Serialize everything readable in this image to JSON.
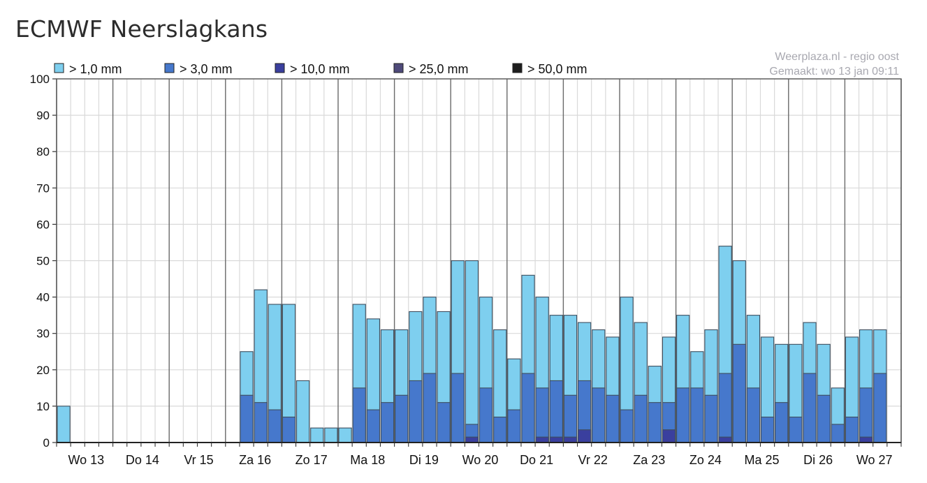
{
  "page": {
    "title": "ECMWF Neerslagkans"
  },
  "chart_data": {
    "type": "bar",
    "stacked": true,
    "title": "ECMWF Neerslagkans",
    "source_line1": "Weerplaza.nl - regio oost",
    "source_line2": "Gemaakt: wo 13 jan 09:11",
    "ylim": [
      0,
      100
    ],
    "yticks": [
      0,
      10,
      20,
      30,
      40,
      50,
      60,
      70,
      80,
      90,
      100
    ],
    "grid": true,
    "legend_position": "top",
    "x_slots": 60,
    "day_labels": [
      "Wo 13",
      "Do 14",
      "Vr 15",
      "Za 16",
      "Zo 17",
      "Ma 18",
      "Di 19",
      "Wo 20",
      "Do 21",
      "Vr 22",
      "Za 23",
      "Zo 24",
      "Ma 25",
      "Di 26",
      "Wo 27"
    ],
    "legend": [
      {
        "label": "> 1,0 mm",
        "color": "#7ecfef"
      },
      {
        "label": "> 3,0 mm",
        "color": "#4678cc"
      },
      {
        "label": "> 10,0 mm",
        "color": "#3a3f9e"
      },
      {
        "label": "> 25,0 mm",
        "color": "#4e4a7a"
      },
      {
        "label": "> 50,0 mm",
        "color": "#1e1e1e"
      }
    ],
    "series": [
      {
        "name": "> 1,0 mm",
        "color": "#7ecfef",
        "values": [
          10,
          0,
          0,
          0,
          0,
          0,
          0,
          0,
          0,
          0,
          0,
          0,
          0,
          0,
          0,
          0,
          0,
          0,
          0,
          0,
          0,
          0,
          0,
          0,
          0,
          0,
          0,
          0,
          0,
          0,
          0,
          0,
          0,
          0,
          0,
          0,
          25,
          42,
          38,
          38,
          17,
          4,
          4,
          4,
          38,
          34,
          31,
          31,
          36,
          40,
          36,
          50,
          50,
          40,
          31,
          23,
          46,
          40,
          35,
          35
        ]
      },
      {
        "name": "> 3,0 mm",
        "color": "#4678cc",
        "values": [
          0,
          0,
          0,
          0,
          0,
          0,
          0,
          0,
          0,
          0,
          0,
          0,
          0,
          0,
          0,
          0,
          0,
          0,
          0,
          0,
          0,
          0,
          0,
          0,
          0,
          0,
          0,
          0,
          0,
          0,
          0,
          0,
          0,
          0,
          0,
          0,
          13,
          11,
          9,
          7,
          0,
          0,
          0,
          0,
          15,
          9,
          11,
          13,
          17,
          19,
          11,
          19,
          5,
          15,
          7,
          9,
          19,
          15,
          17,
          13
        ]
      },
      {
        "name": "> 10,0 mm",
        "color": "#3a3f9e",
        "values": [
          0,
          0,
          0,
          0,
          0,
          0,
          0,
          0,
          0,
          0,
          0,
          0,
          0,
          0,
          0,
          0,
          0,
          0,
          0,
          0,
          0,
          0,
          0,
          0,
          0,
          0,
          0,
          0,
          0,
          0,
          0,
          0,
          0,
          0,
          0,
          0,
          0,
          0,
          0,
          0,
          0,
          0,
          0,
          0,
          0,
          0,
          0,
          0,
          0,
          0,
          0,
          0,
          1.5,
          0,
          0,
          0,
          0,
          1.5,
          1.5,
          1.5
        ]
      },
      {
        "name": "> 25,0 mm",
        "color": "#4e4a7a",
        "values": [
          0,
          0,
          0,
          0,
          0,
          0,
          0,
          0,
          0,
          0,
          0,
          0,
          0,
          0,
          0,
          0,
          0,
          0,
          0,
          0,
          0,
          0,
          0,
          0,
          0,
          0,
          0,
          0,
          0,
          0,
          0,
          0,
          0,
          0,
          0,
          0,
          0,
          0,
          0,
          0,
          0,
          0,
          0,
          0,
          0,
          0,
          0,
          0,
          0,
          0,
          0,
          0,
          0,
          0,
          0,
          0,
          0,
          0,
          0,
          0
        ]
      },
      {
        "name": "> 50,0 mm",
        "color": "#1e1e1e",
        "values": [
          0,
          0,
          0,
          0,
          0,
          0,
          0,
          0,
          0,
          0,
          0,
          0,
          0,
          0,
          0,
          0,
          0,
          0,
          0,
          0,
          0,
          0,
          0,
          0,
          0,
          0,
          0,
          0,
          0,
          0,
          0,
          0,
          0,
          0,
          0,
          0,
          0,
          0,
          0,
          0,
          0,
          0,
          0,
          0,
          0,
          0,
          0,
          0,
          0,
          0,
          0,
          0,
          0,
          0,
          0,
          0,
          0,
          0,
          0,
          0
        ]
      }
    ],
    "bars": [
      {
        "slot": 0,
        "v1": 10,
        "v3": 0,
        "v10": 0
      },
      {
        "slot": 36,
        "v1": 25,
        "v3": 13,
        "v10": 0
      },
      {
        "slot": 37,
        "v1": 42,
        "v3": 11,
        "v10": 0
      },
      {
        "slot": 38,
        "v1": 38,
        "v3": 9,
        "v10": 0
      },
      {
        "slot": 39,
        "v1": 38,
        "v3": 7,
        "v10": 0
      },
      {
        "slot": 40,
        "v1": 17,
        "v3": 0,
        "v10": 0
      },
      {
        "slot": 41,
        "v1": 4,
        "v3": 0,
        "v10": 0
      },
      {
        "slot": 42,
        "v1": 4,
        "v3": 0,
        "v10": 0
      },
      {
        "slot": 43,
        "v1": 4,
        "v3": 0,
        "v10": 0
      },
      {
        "slot": 44,
        "v1": 38,
        "v3": 15,
        "v10": 0
      },
      {
        "slot": 45,
        "v1": 34,
        "v3": 9,
        "v10": 0
      },
      {
        "slot": 46,
        "v1": 31,
        "v3": 11,
        "v10": 0
      },
      {
        "slot": 47,
        "v1": 31,
        "v3": 13,
        "v10": 0
      },
      {
        "slot": 48,
        "v1": 36,
        "v3": 17,
        "v10": 0
      },
      {
        "slot": 49,
        "v1": 40,
        "v3": 19,
        "v10": 0
      },
      {
        "slot": 50,
        "v1": 36,
        "v3": 11,
        "v10": 0
      },
      {
        "slot": 51,
        "v1": 50,
        "v3": 19,
        "v10": 0
      },
      {
        "slot": 52,
        "v1": 50,
        "v3": 5,
        "v10": 1.5
      },
      {
        "slot": 53,
        "v1": 40,
        "v3": 15,
        "v10": 0
      },
      {
        "slot": 54,
        "v1": 31,
        "v3": 7,
        "v10": 0
      },
      {
        "slot": 55,
        "v1": 23,
        "v3": 9,
        "v10": 0
      },
      {
        "slot": 56,
        "v1": 46,
        "v3": 19,
        "v10": 0
      },
      {
        "slot": 57,
        "v1": 40,
        "v3": 15,
        "v10": 1.5
      },
      {
        "slot": 58,
        "v1": 35,
        "v3": 17,
        "v10": 1.5
      },
      {
        "slot": 59,
        "v1": 35,
        "v3": 13,
        "v10": 1.5
      },
      {
        "slot": 60,
        "v1": 33,
        "v3": 17,
        "v10": 3.5
      },
      {
        "slot": 61,
        "v1": 31,
        "v3": 15,
        "v10": 0
      },
      {
        "slot": 62,
        "v1": 29,
        "v3": 13,
        "v10": 0
      },
      {
        "slot": 63,
        "v1": 40,
        "v3": 9,
        "v10": 0
      },
      {
        "slot": 64,
        "v1": 33,
        "v3": 13,
        "v10": 0
      },
      {
        "slot": 65,
        "v1": 21,
        "v3": 11,
        "v10": 0
      },
      {
        "slot": 66,
        "v1": 29,
        "v3": 11,
        "v10": 3.5
      },
      {
        "slot": 67,
        "v1": 35,
        "v3": 15,
        "v10": 0
      },
      {
        "slot": 68,
        "v1": 25,
        "v3": 15,
        "v10": 0
      },
      {
        "slot": 69,
        "v1": 31,
        "v3": 13,
        "v10": 0
      },
      {
        "slot": 70,
        "v1": 54,
        "v3": 19,
        "v10": 1.5
      },
      {
        "slot": 71,
        "v1": 50,
        "v3": 27,
        "v10": 0
      },
      {
        "slot": 72,
        "v1": 35,
        "v3": 15,
        "v10": 0
      },
      {
        "slot": 73,
        "v1": 29,
        "v3": 7,
        "v10": 0
      },
      {
        "slot": 74,
        "v1": 27,
        "v3": 11,
        "v10": 0
      },
      {
        "slot": 75,
        "v1": 27,
        "v3": 7,
        "v10": 0
      },
      {
        "slot": 76,
        "v1": 33,
        "v3": 19,
        "v10": 0
      },
      {
        "slot": 77,
        "v1": 27,
        "v3": 13,
        "v10": 0
      },
      {
        "slot": 78,
        "v1": 15,
        "v3": 5,
        "v10": 0
      },
      {
        "slot": 79,
        "v1": 29,
        "v3": 7,
        "v10": 0
      },
      {
        "slot": 80,
        "v1": 31,
        "v3": 15,
        "v10": 1.5
      },
      {
        "slot": 81,
        "v1": 31,
        "v3": 19,
        "v10": 0
      }
    ]
  }
}
